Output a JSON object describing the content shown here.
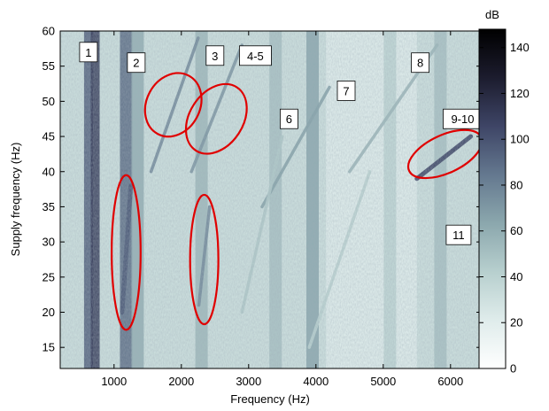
{
  "chart_data": {
    "type": "heatmap",
    "title": "",
    "xlabel": "Frequency (Hz)",
    "ylabel": "Supply frequency (Hz)",
    "xlim": [
      200,
      6450
    ],
    "ylim": [
      12,
      60
    ],
    "xticks": [
      1000,
      2000,
      3000,
      4000,
      5000,
      6000
    ],
    "yticks": [
      15,
      20,
      25,
      30,
      35,
      40,
      45,
      50,
      55,
      60
    ],
    "colorbar": {
      "label": "dB",
      "range": [
        0,
        148
      ],
      "ticks": [
        0,
        20,
        40,
        60,
        80,
        100,
        120,
        140
      ],
      "colormap": [
        "#ffffff",
        "#dfeceb",
        "#b7cfce",
        "#8ba7ad",
        "#64788f",
        "#3e4566",
        "#1c1c2e",
        "#000000"
      ]
    },
    "vertical_bands": [
      {
        "freq": 620,
        "level_db": 95
      },
      {
        "freq": 720,
        "level_db": 110
      },
      {
        "freq": 1180,
        "level_db": 90
      },
      {
        "freq": 1350,
        "level_db": 60
      },
      {
        "freq": 2300,
        "level_db": 55
      },
      {
        "freq": 3400,
        "level_db": 50
      },
      {
        "freq": 3950,
        "level_db": 65
      },
      {
        "freq": 5100,
        "level_db": 40
      },
      {
        "freq": 5850,
        "level_db": 50
      }
    ],
    "harmonic_lines": [
      {
        "f_start": 1120,
        "y_start": 20,
        "f_end": 1250,
        "y_end": 38,
        "level_db": 95
      },
      {
        "f_start": 1550,
        "y_start": 40,
        "f_end": 2250,
        "y_end": 59,
        "level_db": 75
      },
      {
        "f_start": 2150,
        "y_start": 40,
        "f_end": 2900,
        "y_end": 58,
        "level_db": 70
      },
      {
        "f_start": 2260,
        "y_start": 21,
        "f_end": 2420,
        "y_end": 35,
        "level_db": 75
      },
      {
        "f_start": 3200,
        "y_start": 35,
        "f_end": 4200,
        "y_end": 52,
        "level_db": 65
      },
      {
        "f_start": 2900,
        "y_start": 20,
        "f_end": 3500,
        "y_end": 45,
        "level_db": 45
      },
      {
        "f_start": 4500,
        "y_start": 40,
        "f_end": 5800,
        "y_end": 58,
        "level_db": 55
      },
      {
        "f_start": 5500,
        "y_start": 39,
        "f_end": 6300,
        "y_end": 45,
        "level_db": 105
      },
      {
        "f_start": 3900,
        "y_start": 15,
        "f_end": 4800,
        "y_end": 40,
        "level_db": 40
      }
    ],
    "annotations": [
      {
        "text": "1",
        "freq": 620,
        "supply": 57
      },
      {
        "text": "2",
        "freq": 1330,
        "supply": 55.5
      },
      {
        "text": "3",
        "freq": 2500,
        "supply": 56.5
      },
      {
        "text": "4-5",
        "freq": 3100,
        "supply": 56.5
      },
      {
        "text": "6",
        "freq": 3600,
        "supply": 47.5
      },
      {
        "text": "7",
        "freq": 4450,
        "supply": 51.5
      },
      {
        "text": "8",
        "freq": 5550,
        "supply": 55.5
      },
      {
        "text": "9-10",
        "freq": 6180,
        "supply": 47.5
      },
      {
        "text": "11",
        "freq": 6120,
        "supply": 31
      }
    ],
    "highlighted_regions": [
      {
        "freq": 1180,
        "supply": 28.5,
        "freq_halfwidth": 215,
        "supply_halfwidth": 11,
        "tilt_deg": 0
      },
      {
        "freq": 1880,
        "supply": 49.5,
        "freq_halfwidth": 490,
        "supply_halfwidth": 3.8,
        "tilt_deg": -62
      },
      {
        "freq": 2520,
        "supply": 47.5,
        "freq_halfwidth": 560,
        "supply_halfwidth": 3.8,
        "tilt_deg": -57
      },
      {
        "freq": 2340,
        "supply": 27.5,
        "freq_halfwidth": 210,
        "supply_halfwidth": 9.2,
        "tilt_deg": 0
      },
      {
        "freq": 5920,
        "supply": 42.5,
        "freq_halfwidth": 590,
        "supply_halfwidth": 2.7,
        "tilt_deg": -25
      }
    ],
    "grid": false,
    "legend": "colorbar-right"
  }
}
